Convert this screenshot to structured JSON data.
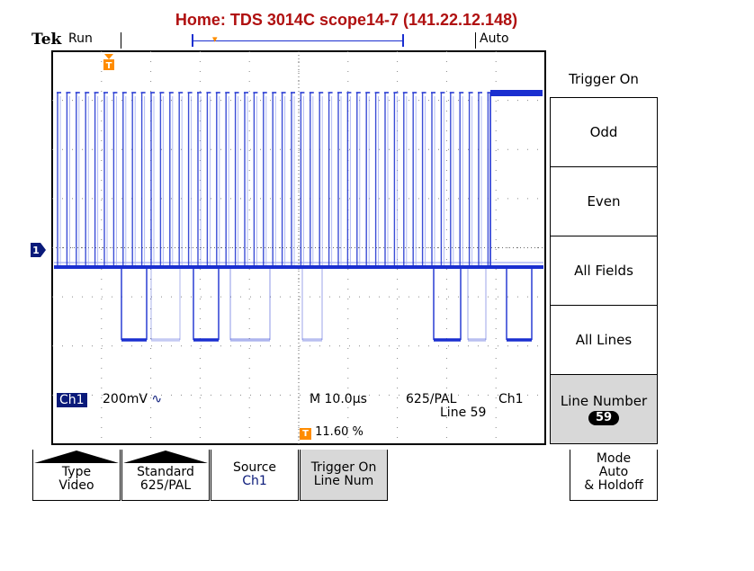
{
  "title": "Home:  TDS 3014C  scope14-7  (141.22.12.148)",
  "status": {
    "brand": "Tek",
    "acq_state": "Run",
    "trigger_mode": "Auto"
  },
  "markers": {
    "trigger_marker_glyph": "T",
    "channel_marker_glyph": "1"
  },
  "readouts": {
    "channel": "Ch1",
    "volts_div": "200mV",
    "coupling_symbol": "∿",
    "timebase": "M 10.0µs",
    "standard": "625/PAL",
    "line": "Line 59",
    "trigger_source": "Ch1",
    "trigger_position": "11.60 %"
  },
  "side_menu": {
    "title": "Trigger On",
    "items": [
      {
        "label": "Odd"
      },
      {
        "label": "Even"
      },
      {
        "label": "All Fields"
      },
      {
        "label": "All Lines"
      }
    ],
    "selected": {
      "label": "Line Number",
      "value": "59"
    }
  },
  "bottom_menu": {
    "type": {
      "line1": "Type",
      "line2": "Video"
    },
    "standard": {
      "line1": "Standard",
      "line2": "625/PAL"
    },
    "source": {
      "line1": "Source",
      "line2": "Ch1"
    },
    "trigger_on": {
      "line1": "Trigger On",
      "line2": "Line Num"
    },
    "mode": {
      "line1": "Mode",
      "line2": "Auto",
      "line3": "& Holdoff"
    }
  },
  "colors": {
    "trace": "#1a2fd0",
    "trigger_marker": "#ff8c00",
    "title": "#b01010"
  }
}
